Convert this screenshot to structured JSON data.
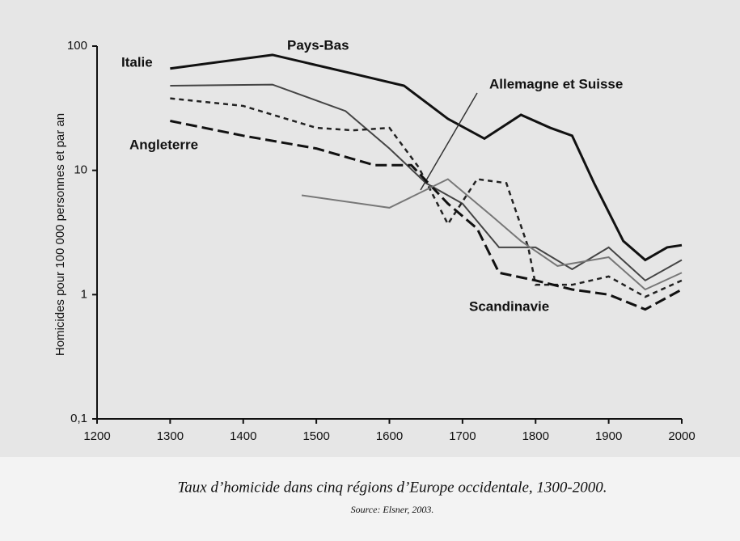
{
  "chart_data": {
    "type": "line",
    "ylabel": "Homicides pour 100 000 personnes et par an",
    "title": "Taux d’homicide dans cinq régions d’Europe occidentale, 1300-2000.",
    "source": "Source: Elsner, 2003.",
    "xlim": [
      1200,
      2000
    ],
    "xticks": [
      1200,
      1300,
      1400,
      1500,
      1600,
      1700,
      1800,
      1900,
      2000
    ],
    "ylim": [
      0.1,
      100
    ],
    "yticks": [
      {
        "value": 0.1,
        "label": "0,1"
      },
      1,
      10,
      100
    ],
    "log_y": true,
    "series": [
      {
        "name": "Italie",
        "color": "#111111",
        "dash": "solid",
        "width": 3,
        "x": [
          1300,
          1440,
          1550,
          1620,
          1680,
          1730,
          1780,
          1820,
          1850,
          1880,
          1920,
          1950,
          1980,
          2000
        ],
        "values": [
          66,
          85,
          60,
          48,
          26,
          18,
          28,
          22,
          19,
          7.9,
          2.7,
          1.9,
          2.4,
          2.5
        ]
      },
      {
        "name": "Pays-Bas",
        "color": "#444444",
        "dash": "solid",
        "width": 2,
        "x": [
          1300,
          1440,
          1540,
          1600,
          1650,
          1700,
          1750,
          1800,
          1850,
          1900,
          1950,
          2000
        ],
        "values": [
          48,
          49,
          30,
          15,
          7.9,
          5.4,
          2.4,
          2.4,
          1.6,
          2.4,
          1.3,
          1.9
        ]
      },
      {
        "name": "Allemagne et Suisse",
        "color": "#222222",
        "dash": "short",
        "width": 2.5,
        "x": [
          1300,
          1400,
          1500,
          1550,
          1600,
          1640,
          1680,
          1720,
          1760,
          1790,
          1800,
          1850,
          1900,
          1950,
          2000
        ],
        "values": [
          38,
          33,
          22,
          21,
          22,
          10.6,
          3.7,
          8.5,
          7.9,
          2.4,
          1.2,
          1.2,
          1.4,
          0.96,
          1.3
        ]
      },
      {
        "name": "Angleterre",
        "color": "#111111",
        "dash": "long",
        "width": 3,
        "x": [
          1300,
          1400,
          1500,
          1580,
          1630,
          1680,
          1720,
          1750,
          1800,
          1850,
          1900,
          1950,
          2000
        ],
        "values": [
          25,
          19,
          15,
          11,
          11,
          5.4,
          3.4,
          1.5,
          1.3,
          1.1,
          1.0,
          0.76,
          1.1
        ]
      },
      {
        "name": "Scandinavie",
        "color": "#777777",
        "dash": "solid",
        "width": 2,
        "x": [
          1480,
          1600,
          1680,
          1740,
          1780,
          1830,
          1900,
          1950,
          2000
        ],
        "values": [
          6.3,
          5.0,
          8.5,
          4.3,
          2.7,
          1.7,
          2.0,
          1.1,
          1.5
        ]
      }
    ]
  }
}
